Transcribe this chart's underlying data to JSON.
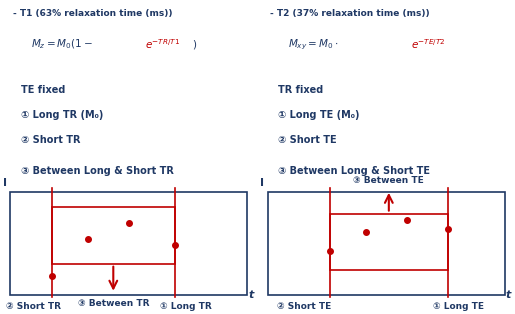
{
  "bg_color": "#ffffff",
  "dark_blue": "#1F3864",
  "red": "#C00000",
  "title_left": "- T1 (63% relaxation time (ms))",
  "title_right": "- T2 (37% relaxation time (ms))",
  "text_left_1": "TE fixed",
  "text_left_2": "① Long TR (M₀)",
  "text_left_3": "② Short TR",
  "text_left_4": "③ Between Long & Short TR",
  "text_right_1": "TR fixed",
  "text_right_2": "① Long TE (M₀)",
  "text_right_3": "② Short TE",
  "text_right_4": "③ Between Long & Short TE",
  "box_label_left": "③ Between TR",
  "box_label_left2": "② Short TR",
  "box_label_left3": "① Long TR",
  "box_label_right": "③ Between TE",
  "box_label_right2": "② Short TE",
  "box_label_right3": "① Long TE"
}
